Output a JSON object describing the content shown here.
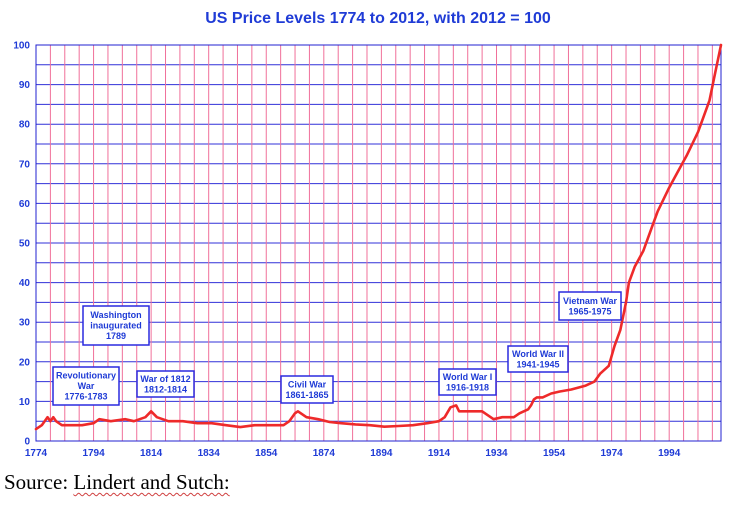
{
  "chart_data": {
    "type": "line",
    "title": "US Price Levels 1774 to 2012, with 2012 = 100",
    "xlabel": "",
    "ylabel": "",
    "xlim": [
      1774,
      2012
    ],
    "ylim": [
      0,
      100
    ],
    "x_ticks": [
      1774,
      1794,
      1814,
      1834,
      1854,
      1874,
      1894,
      1914,
      1934,
      1954,
      1974,
      1994
    ],
    "y_ticks": [
      0,
      10,
      20,
      30,
      40,
      50,
      60,
      70,
      80,
      90,
      100
    ],
    "grid": true,
    "series": [
      {
        "color": "#ee2a2a",
        "x": [
          1774,
          1776,
          1778,
          1779,
          1780,
          1781,
          1783,
          1786,
          1790,
          1794,
          1796,
          1800,
          1805,
          1808,
          1812,
          1814,
          1816,
          1820,
          1825,
          1830,
          1835,
          1840,
          1845,
          1850,
          1855,
          1860,
          1862,
          1864,
          1865,
          1868,
          1872,
          1876,
          1880,
          1885,
          1890,
          1895,
          1900,
          1905,
          1910,
          1914,
          1916,
          1918,
          1920,
          1921,
          1925,
          1929,
          1930,
          1933,
          1936,
          1940,
          1942,
          1945,
          1946,
          1947,
          1948,
          1950,
          1953,
          1956,
          1960,
          1965,
          1968,
          1970,
          1973,
          1975,
          1977,
          1979,
          1980,
          1982,
          1985,
          1988,
          1990,
          1994,
          1997,
          2000,
          2004,
          2008,
          2010,
          2012
        ],
        "y": [
          3,
          4,
          6,
          5,
          6,
          5,
          4,
          4,
          4,
          4.5,
          5.5,
          5,
          5.5,
          5,
          6,
          7.5,
          6,
          5,
          5,
          4.5,
          4.5,
          4,
          3.5,
          4,
          4,
          4,
          5,
          7,
          7.5,
          6,
          5.5,
          4.8,
          4.5,
          4.2,
          4,
          3.6,
          3.8,
          4,
          4.5,
          5,
          6,
          8.5,
          9,
          7.5,
          7.5,
          7.5,
          7,
          5.5,
          6,
          6,
          7,
          8,
          9,
          10.5,
          11,
          11,
          12,
          12.5,
          13,
          14,
          15,
          17,
          19,
          24,
          28,
          35,
          40,
          44,
          48,
          54,
          58,
          64,
          68,
          72,
          78,
          86,
          93,
          100
        ]
      }
    ],
    "annotations": [
      {
        "lines": [
          "Revolutionary",
          "War",
          "1776-1783"
        ]
      },
      {
        "lines": [
          "Washington",
          "inaugurated",
          "1789"
        ]
      },
      {
        "lines": [
          "War of 1812",
          "1812-1814"
        ]
      },
      {
        "lines": [
          "Civil War",
          "1861-1865"
        ]
      },
      {
        "lines": [
          "World War I",
          "1916-1918"
        ]
      },
      {
        "lines": [
          "World War II",
          "1941-1945"
        ]
      },
      {
        "lines": [
          "Vietnam War",
          "1965-1975"
        ]
      }
    ]
  },
  "source": {
    "label": "Source: ",
    "link": "Lindert and Sutch:"
  }
}
